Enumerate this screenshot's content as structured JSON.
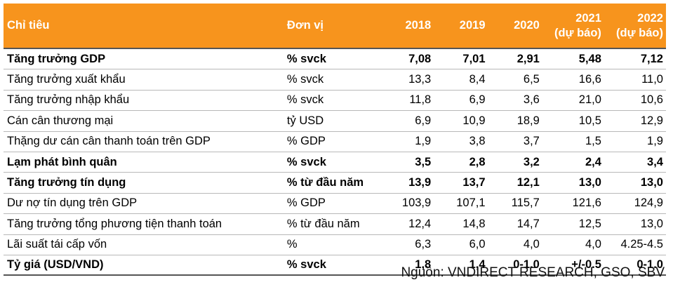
{
  "header": {
    "indicator": "Chỉ tiêu",
    "unit": "Đơn vị",
    "years": [
      "2018",
      "2019",
      "2020",
      "2021",
      "2022"
    ],
    "forecast_note": [
      "",
      "",
      "",
      "(dự báo)",
      "(dự báo)"
    ]
  },
  "rows": [
    {
      "indicator": "Tăng trưởng GDP",
      "unit": "% svck",
      "values": [
        "7,08",
        "7,01",
        "2,91",
        "5,48",
        "7,12"
      ],
      "bold": true
    },
    {
      "indicator": "Tăng trưởng xuất khẩu",
      "unit": "% svck",
      "values": [
        "13,3",
        "8,4",
        "6,5",
        "16,6",
        "11,0"
      ],
      "bold": false
    },
    {
      "indicator": "Tăng trưởng nhập khẩu",
      "unit": "% svck",
      "values": [
        "11,8",
        "6,9",
        "3,6",
        "21,0",
        "10,6"
      ],
      "bold": false
    },
    {
      "indicator": "Cán cân thương mại",
      "unit": "tỷ USD",
      "values": [
        "6,9",
        "10,9",
        "18,9",
        "10,5",
        "12,9"
      ],
      "bold": false
    },
    {
      "indicator": "Thặng dư cán cân thanh toán trên GDP",
      "unit": "% GDP",
      "values": [
        "1,9",
        "3,8",
        "3,7",
        "1,5",
        "1,9"
      ],
      "bold": false
    },
    {
      "indicator": "Lạm phát bình quân",
      "unit": "% svck",
      "values": [
        "3,5",
        "2,8",
        "3,2",
        "2,4",
        "3,4"
      ],
      "bold": true
    },
    {
      "indicator": "Tăng trưởng tín dụng",
      "unit": "% từ đầu năm",
      "values": [
        "13,9",
        "13,7",
        "12,1",
        "13,0",
        "13,0"
      ],
      "bold": true
    },
    {
      "indicator": "Dư nợ tín dụng trên GDP",
      "unit": "% GDP",
      "values": [
        "103,9",
        "107,1",
        "115,7",
        "121,6",
        "124,9"
      ],
      "bold": false
    },
    {
      "indicator": "Tăng trưởng tổng phương tiện thanh toán",
      "unit": "% từ đầu năm",
      "values": [
        "12,4",
        "14,8",
        "14,7",
        "12,5",
        "13,0"
      ],
      "bold": false
    },
    {
      "indicator": "Lãi suất tái cấp vốn",
      "unit": "%",
      "values": [
        "6,3",
        "6,0",
        "4,0",
        "4,0",
        "4.25-4.5"
      ],
      "bold": false
    },
    {
      "indicator": "Tỷ giá (USD/VND)",
      "unit": "% svck",
      "values": [
        "1,8",
        "1,4",
        "0-1.0",
        "+/-0.5",
        "0-1.0"
      ],
      "bold": true
    }
  ],
  "source": "Nguồn: VNDIRECT RESEARCH, GSO, SBV",
  "colors": {
    "header_bg": "#f7941d",
    "header_text": "#ffffff"
  }
}
